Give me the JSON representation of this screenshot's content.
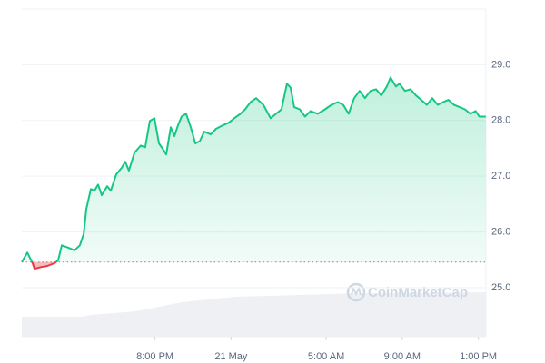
{
  "chart_data": {
    "type": "line",
    "x": [
      13.0,
      13.29,
      13.57,
      13.67,
      14.0,
      14.34,
      14.72,
      14.91,
      15.1,
      15.43,
      15.77,
      16.05,
      16.25,
      16.39,
      16.63,
      16.82,
      17.01,
      17.2,
      17.49,
      17.68,
      17.96,
      18.25,
      18.44,
      18.63,
      18.92,
      19.25,
      19.49,
      19.73,
      19.97,
      20.21,
      20.45,
      20.59,
      20.83,
      21.02,
      21.21,
      21.4,
      21.64,
      21.88,
      22.12,
      22.36,
      22.59,
      22.93,
      23.21,
      23.55,
      23.88,
      24.17,
      24.46,
      24.74,
      25.03,
      25.32,
      25.7,
      26.08,
      26.37,
      26.65,
      26.94,
      27.13,
      27.32,
      27.61,
      27.89,
      28.18,
      28.56,
      28.94,
      29.28,
      29.61,
      29.9,
      30.18,
      30.47,
      30.76,
      31.04,
      31.33,
      31.62,
      31.9,
      32.19,
      32.38,
      32.67,
      32.86,
      33.14,
      33.43,
      33.72,
      34.0,
      34.29,
      34.58,
      34.86,
      35.15,
      35.43,
      35.72,
      36.01,
      36.29,
      36.58,
      36.86,
      37.05,
      37.39
    ],
    "values": [
      25.46,
      25.63,
      25.44,
      25.34,
      25.37,
      25.39,
      25.44,
      25.49,
      25.76,
      25.72,
      25.67,
      25.76,
      25.96,
      26.41,
      26.77,
      26.74,
      26.85,
      26.66,
      26.82,
      26.74,
      27.03,
      27.15,
      27.26,
      27.1,
      27.42,
      27.55,
      27.52,
      27.99,
      28.04,
      27.59,
      27.47,
      27.39,
      27.88,
      27.72,
      27.91,
      28.07,
      28.12,
      27.88,
      27.59,
      27.63,
      27.8,
      27.75,
      27.85,
      27.91,
      27.96,
      28.04,
      28.11,
      28.2,
      28.33,
      28.4,
      28.28,
      28.04,
      28.12,
      28.2,
      28.66,
      28.59,
      28.24,
      28.2,
      28.07,
      28.17,
      28.12,
      28.2,
      28.28,
      28.33,
      28.28,
      28.12,
      28.4,
      28.53,
      28.4,
      28.53,
      28.56,
      28.45,
      28.61,
      28.77,
      28.61,
      28.66,
      28.53,
      28.56,
      28.45,
      28.37,
      28.28,
      28.4,
      28.28,
      28.33,
      28.37,
      28.28,
      28.24,
      28.2,
      28.12,
      28.17,
      28.07,
      28.07
    ],
    "baseline": 25.46,
    "color": "#16c784",
    "down_color": "#ea3943",
    "xlim": [
      13,
      37.4
    ],
    "xticks": [
      {
        "value": 20,
        "label": "8:00 PM"
      },
      {
        "value": 24,
        "label": "21 May"
      },
      {
        "value": 29,
        "label": "5:00 AM"
      },
      {
        "value": 33,
        "label": "9:00 AM"
      },
      {
        "value": 37,
        "label": "1:00 PM"
      }
    ],
    "ylim": [
      24.12,
      30
    ],
    "yticks": [
      {
        "value": 25,
        "label": "25.0"
      },
      {
        "value": 26,
        "label": "26.0"
      },
      {
        "value": 27,
        "label": "27.0"
      },
      {
        "value": 28,
        "label": "28.0"
      },
      {
        "value": 29,
        "label": "29.0"
      }
    ],
    "grid": true,
    "watermark": "CoinMarketCap"
  }
}
